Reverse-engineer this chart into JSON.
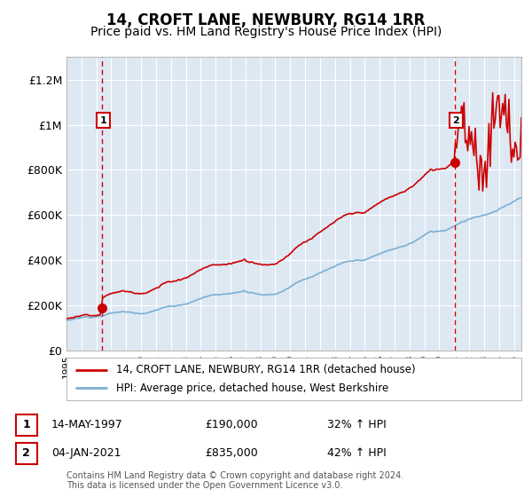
{
  "title": "14, CROFT LANE, NEWBURY, RG14 1RR",
  "subtitle": "Price paid vs. HM Land Registry's House Price Index (HPI)",
  "title_fontsize": 12,
  "subtitle_fontsize": 10,
  "sale1_year": 1997.37,
  "sale2_year": 2021.02,
  "sale1_price": 190000,
  "sale2_price": 835000,
  "legend_line1": "14, CROFT LANE, NEWBURY, RG14 1RR (detached house)",
  "legend_line2": "HPI: Average price, detached house, West Berkshire",
  "table_row1": [
    "1",
    "14-MAY-1997",
    "£190,000",
    "32% ↑ HPI"
  ],
  "table_row2": [
    "2",
    "04-JAN-2021",
    "£835,000",
    "42% ↑ HPI"
  ],
  "copyright_text": "Contains HM Land Registry data © Crown copyright and database right 2024.\nThis data is licensed under the Open Government Licence v3.0.",
  "xmin": 1995.0,
  "xmax": 2025.5,
  "ymin": 0,
  "ymax": 1300000,
  "yticks": [
    0,
    200000,
    400000,
    600000,
    800000,
    1000000,
    1200000
  ],
  "ytick_labels": [
    "£0",
    "£200K",
    "£400K",
    "£600K",
    "£800K",
    "£1M",
    "£1.2M"
  ],
  "chart_bg_color": "#dde8f3",
  "line_color_red": "#cc0000",
  "line_color_blue": "#7bafd4",
  "vline_color": "#cc0000",
  "grid_color": "#ffffff",
  "annotation_box_color": "#cc0000",
  "fig_width": 6.0,
  "fig_height": 5.6,
  "dpi": 100
}
